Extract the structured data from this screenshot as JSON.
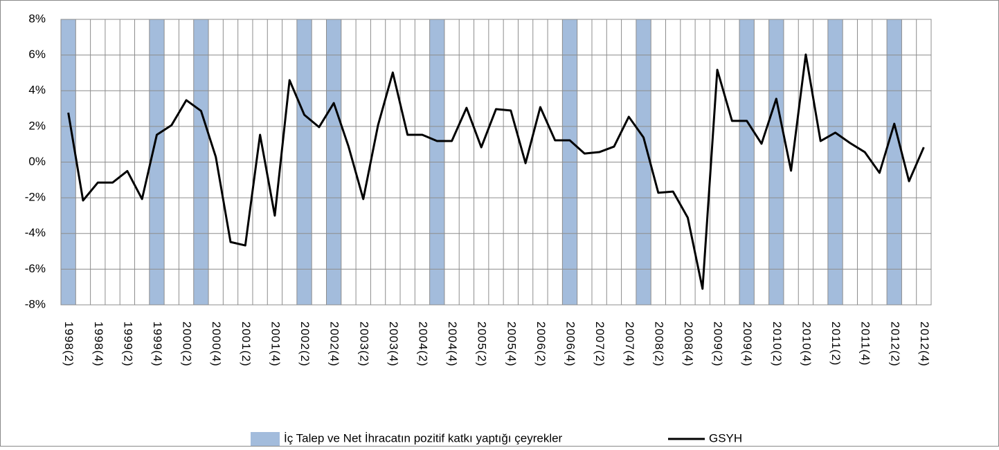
{
  "chart_data": {
    "type": "line",
    "categories": [
      "1998(2)",
      null,
      "1998(4)",
      null,
      "1999(2)",
      null,
      "1999(4)",
      null,
      "2000(2)",
      null,
      "2000(4)",
      null,
      "2001(2)",
      null,
      "2001(4)",
      null,
      "2002(2)",
      null,
      "2002(4)",
      null,
      "2003(2)",
      null,
      "2003(4)",
      null,
      "2004(2)",
      null,
      "2004(4)",
      null,
      "2005(2)",
      null,
      "2005(4)",
      null,
      "2006(2)",
      null,
      "2006(4)",
      null,
      "2007(2)",
      null,
      "2007(4)",
      null,
      "2008(2)",
      null,
      "2008(4)",
      null,
      "2009(2)",
      null,
      "2009(4)",
      null,
      "2010(2)",
      null,
      "2010(4)",
      null,
      "2011(2)",
      null,
      "2011(4)",
      null,
      "2012(2)",
      null,
      "2012(4)"
    ],
    "series": [
      {
        "name": "İç Talep ve Net İhracatın pozitif katkı yaptığı çeyrekler",
        "type": "bar",
        "color": "#a3bcdc",
        "values": [
          [
            -8,
            8
          ],
          null,
          null,
          null,
          null,
          null,
          [
            -8,
            8
          ],
          null,
          null,
          [
            -8,
            8
          ],
          null,
          null,
          null,
          null,
          null,
          null,
          [
            -8,
            8
          ],
          null,
          [
            -8,
            8
          ],
          null,
          null,
          null,
          null,
          null,
          null,
          [
            -8,
            8
          ],
          null,
          null,
          null,
          null,
          null,
          null,
          null,
          null,
          [
            -8,
            8
          ],
          null,
          null,
          null,
          null,
          [
            -8,
            8
          ],
          null,
          null,
          null,
          null,
          null,
          null,
          [
            -8,
            8
          ],
          null,
          [
            -8,
            8
          ],
          null,
          null,
          null,
          [
            -8,
            8
          ],
          null,
          null,
          null,
          [
            -8,
            8
          ],
          null,
          null
        ]
      },
      {
        "name": "GSYH",
        "type": "line",
        "color": "#000000",
        "values": [
          2.77,
          -2.15,
          -1.15,
          -1.15,
          -0.5,
          -2.07,
          1.53,
          2.07,
          3.47,
          2.87,
          0.29,
          -4.48,
          -4.67,
          1.53,
          -3.0,
          4.59,
          2.65,
          1.96,
          3.31,
          0.87,
          -2.07,
          2.07,
          5.02,
          1.53,
          1.53,
          1.18,
          1.18,
          3.04,
          0.83,
          2.97,
          2.89,
          -0.06,
          3.08,
          1.22,
          1.22,
          0.48,
          0.56,
          0.87,
          2.54,
          1.38,
          -1.72,
          -1.65,
          -3.12,
          -7.1,
          5.17,
          2.31,
          2.31,
          1.03,
          3.55,
          -0.48,
          6.03,
          1.18,
          1.65,
          1.07,
          0.56,
          -0.6,
          2.15,
          -1.07,
          0.83
        ]
      }
    ],
    "ylim": [
      -8,
      8
    ],
    "yticks": [
      {
        "value": -8,
        "label": "-8%"
      },
      {
        "value": -6,
        "label": "-6%"
      },
      {
        "value": -4,
        "label": "-4%"
      },
      {
        "value": -2,
        "label": "-2%"
      },
      {
        "value": 0,
        "label": "0%"
      },
      {
        "value": 2,
        "label": "2%"
      },
      {
        "value": 4,
        "label": "4%"
      },
      {
        "value": 6,
        "label": "6%"
      },
      {
        "value": 8,
        "label": "8%"
      }
    ],
    "grid": true,
    "legend": "bottom"
  }
}
